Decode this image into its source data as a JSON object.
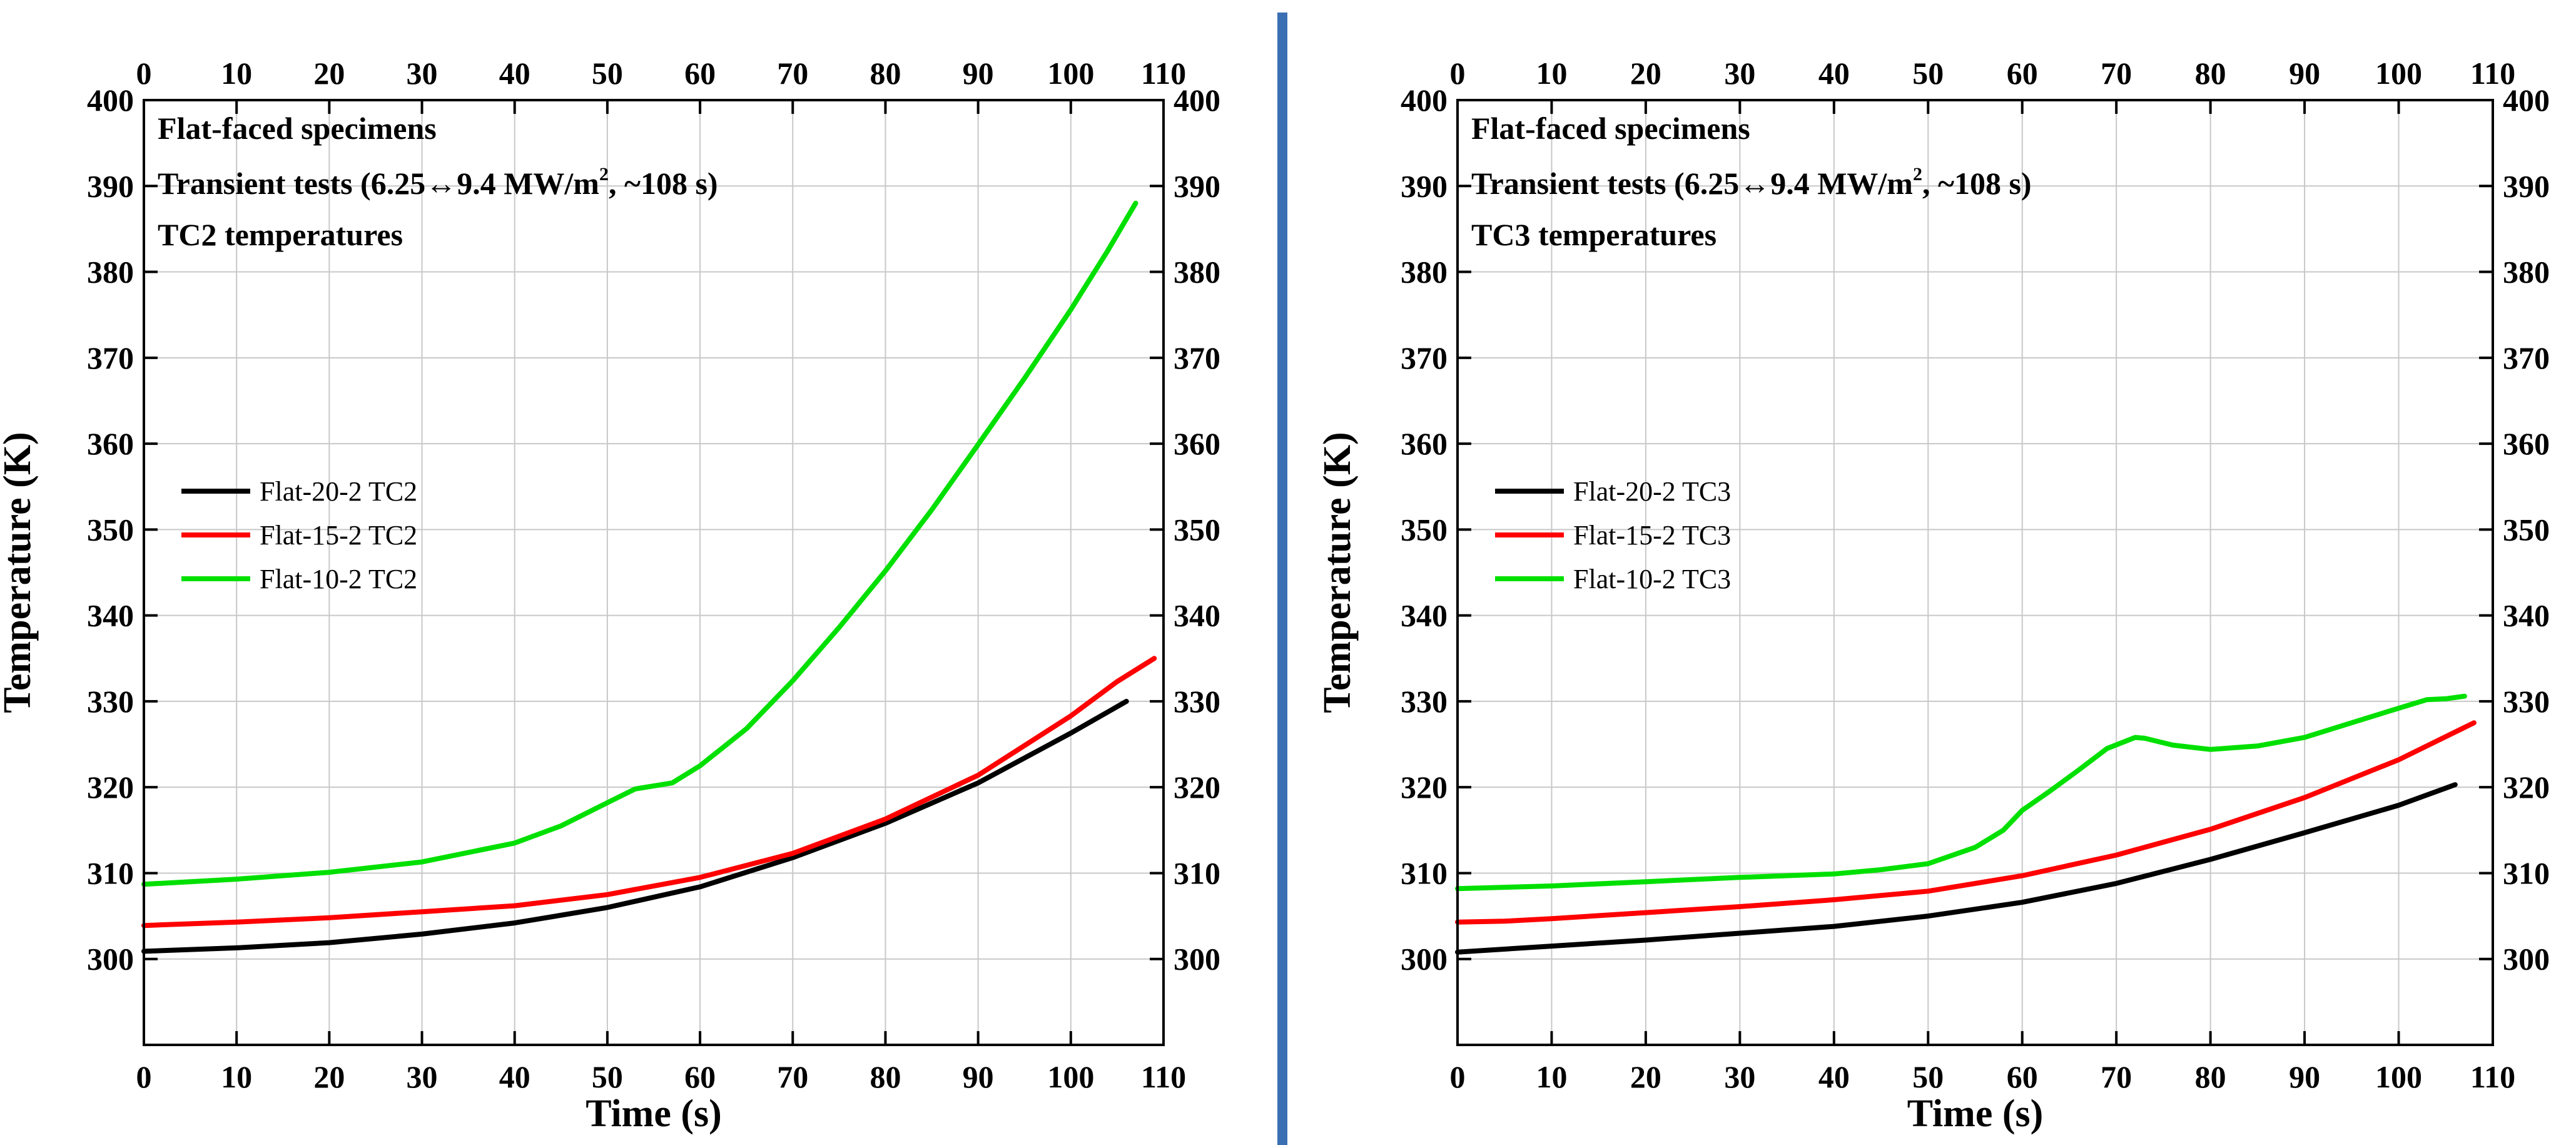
{
  "divider_color": "#3a6fb4",
  "chart_data": [
    {
      "type": "line",
      "xlabel": "Time (s)",
      "ylabel": "Temperature (K)",
      "xlim": [
        0,
        110
      ],
      "ylim": [
        290,
        400
      ],
      "xticks": [
        0,
        10,
        20,
        30,
        40,
        50,
        60,
        70,
        80,
        90,
        100,
        110
      ],
      "yticks": [
        300,
        310,
        320,
        330,
        340,
        350,
        360,
        370,
        380,
        390,
        400
      ],
      "grid": true,
      "legend_position": "middle-left",
      "annotations": {
        "line1": "Flat-faced specimens",
        "line2_pre": "Transient tests (6.25↔9.4 MW/m",
        "line2_sup": "2",
        "line2_post": ", ~108 s)",
        "line3": "TC2 temperatures"
      },
      "series": [
        {
          "name": "Flat-20-2 TC2",
          "color": "#000000",
          "x": [
            0,
            10,
            20,
            30,
            40,
            50,
            60,
            70,
            80,
            90,
            100,
            106
          ],
          "y": [
            300.9,
            301.3,
            301.9,
            302.9,
            304.2,
            306.0,
            308.4,
            311.8,
            315.8,
            320.5,
            326.3,
            330.0
          ]
        },
        {
          "name": "Flat-15-2 TC2",
          "color": "#ff0000",
          "x": [
            0,
            10,
            20,
            30,
            40,
            50,
            60,
            70,
            80,
            90,
            100,
            105,
            109
          ],
          "y": [
            303.9,
            304.3,
            304.8,
            305.5,
            306.2,
            307.5,
            309.5,
            312.3,
            316.3,
            321.4,
            328.3,
            332.3,
            335.0
          ]
        },
        {
          "name": "Flat-10-2 TC2",
          "color": "#00e000",
          "x": [
            0,
            10,
            20,
            30,
            40,
            45,
            50,
            53,
            57,
            60,
            65,
            70,
            75,
            80,
            85,
            90,
            95,
            100,
            104,
            107
          ],
          "y": [
            308.7,
            309.3,
            310.1,
            311.3,
            313.5,
            315.5,
            318.2,
            319.8,
            320.5,
            322.5,
            326.8,
            332.4,
            338.6,
            345.2,
            352.3,
            359.9,
            367.6,
            375.6,
            382.5,
            388.0
          ]
        }
      ]
    },
    {
      "type": "line",
      "xlabel": "Time (s)",
      "ylabel": "Temperature (K)",
      "xlim": [
        0,
        110
      ],
      "ylim": [
        290,
        400
      ],
      "xticks": [
        0,
        10,
        20,
        30,
        40,
        50,
        60,
        70,
        80,
        90,
        100,
        110
      ],
      "yticks": [
        300,
        310,
        320,
        330,
        340,
        350,
        360,
        370,
        380,
        390,
        400
      ],
      "grid": true,
      "legend_position": "middle-left",
      "annotations": {
        "line1": "Flat-faced specimens",
        "line2_pre": "Transient tests (6.25↔9.4 MW/m",
        "line2_sup": "2",
        "line2_post": ", ~108 s)",
        "line3": "TC3 temperatures"
      },
      "series": [
        {
          "name": "Flat-20-2 TC3",
          "color": "#000000",
          "x": [
            0,
            10,
            20,
            30,
            40,
            50,
            60,
            70,
            80,
            90,
            100,
            106
          ],
          "y": [
            300.8,
            301.5,
            302.2,
            303.0,
            303.8,
            305.0,
            306.6,
            308.8,
            311.6,
            314.7,
            317.9,
            320.3
          ]
        },
        {
          "name": "Flat-15-2 TC3",
          "color": "#ff0000",
          "x": [
            0,
            5,
            10,
            20,
            30,
            40,
            50,
            60,
            70,
            80,
            90,
            100,
            108
          ],
          "y": [
            304.3,
            304.4,
            304.7,
            305.4,
            306.1,
            306.9,
            307.9,
            309.7,
            312.1,
            315.1,
            318.8,
            323.2,
            327.5
          ]
        },
        {
          "name": "Flat-10-2 TC3",
          "color": "#00e000",
          "x": [
            0,
            10,
            20,
            30,
            40,
            45,
            50,
            55,
            58,
            60,
            63,
            66,
            69,
            72,
            73,
            76,
            80,
            85,
            90,
            95,
            100,
            103,
            105,
            107
          ],
          "y": [
            308.2,
            308.5,
            309.0,
            309.5,
            309.9,
            310.4,
            311.1,
            313.0,
            315.0,
            317.3,
            319.6,
            322.0,
            324.5,
            325.8,
            325.7,
            324.9,
            324.4,
            324.8,
            325.8,
            327.5,
            329.2,
            330.2,
            330.3,
            330.6
          ]
        }
      ]
    }
  ]
}
